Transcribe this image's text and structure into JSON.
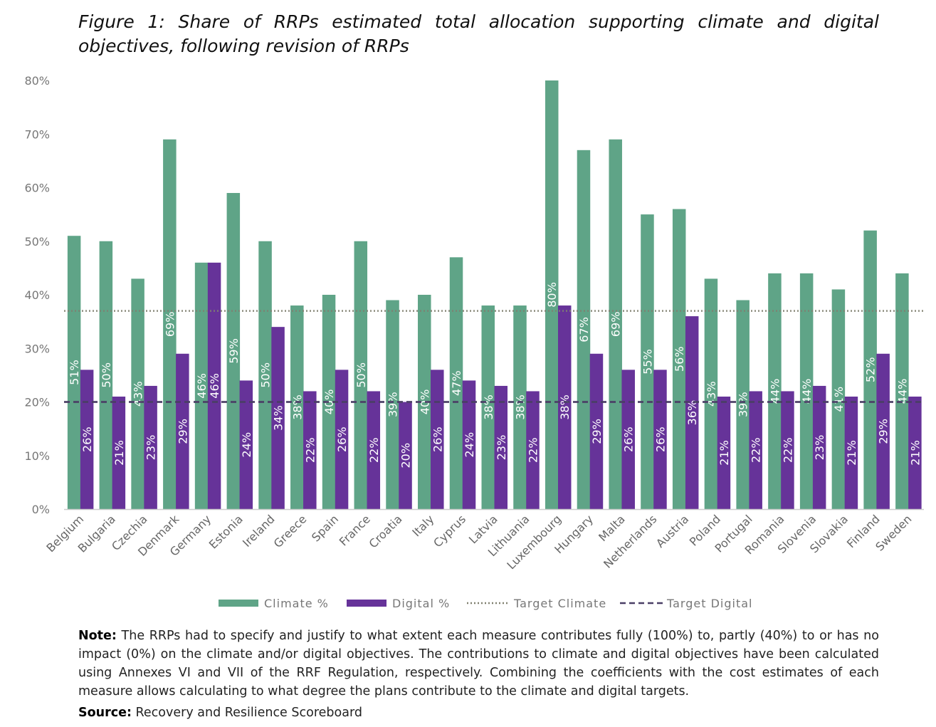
{
  "title": "Figure 1: Share of RRPs estimated total allocation supporting climate and digital objectives, following revision of RRPs",
  "note_label": "Note:",
  "note_text": "The RRPs had to specify and justify to what extent each measure contributes fully (100%) to, partly (40%) to or has no impact (0%) on the climate and/or digital objectives. The contributions to climate and digital objectives have been calculated using Annexes VI and VII of the RRF Regulation, respectively. Combining the coefficients with the cost estimates of each measure allows calculating to what degree the plans contribute to the climate and digital targets.",
  "source_label": "Source:",
  "source_text": "Recovery and Resilience Scoreboard",
  "chart_data": {
    "type": "bar",
    "categories": [
      "Belgium",
      "Bulgaria",
      "Czechia",
      "Denmark",
      "Germany",
      "Estonia",
      "Ireland",
      "Greece",
      "Spain",
      "France",
      "Croatia",
      "Italy",
      "Cyprus",
      "Latvia",
      "Lithuania",
      "Luxembourg",
      "Hungary",
      "Malta",
      "Netherlands",
      "Austria",
      "Poland",
      "Portugal",
      "Romania",
      "Slovenia",
      "Slovakia",
      "Finland",
      "Sweden"
    ],
    "series": [
      {
        "name": "Climate %",
        "color": "#5fa487",
        "values": [
          51,
          50,
          43,
          69,
          46,
          59,
          50,
          38,
          40,
          50,
          39,
          40,
          47,
          38,
          38,
          80,
          67,
          69,
          55,
          56,
          43,
          39,
          44,
          44,
          41,
          52,
          44
        ]
      },
      {
        "name": "Digital %",
        "color": "#663399",
        "values": [
          26,
          21,
          23,
          29,
          46,
          24,
          34,
          22,
          26,
          22,
          20,
          26,
          24,
          23,
          22,
          38,
          29,
          26,
          26,
          36,
          21,
          22,
          22,
          23,
          21,
          29,
          21
        ]
      }
    ],
    "targets": [
      {
        "name": "Target Climate",
        "value": 37,
        "color": "#808070",
        "style": "dotted"
      },
      {
        "name": "Target Digital",
        "value": 20,
        "color": "#4a3f66",
        "style": "dashed"
      }
    ],
    "ylim": [
      0,
      80
    ],
    "yticks": [
      "0%",
      "10%",
      "20%",
      "30%",
      "40%",
      "50%",
      "60%",
      "70%",
      "80%"
    ],
    "legend": "bottom",
    "grid": false
  }
}
